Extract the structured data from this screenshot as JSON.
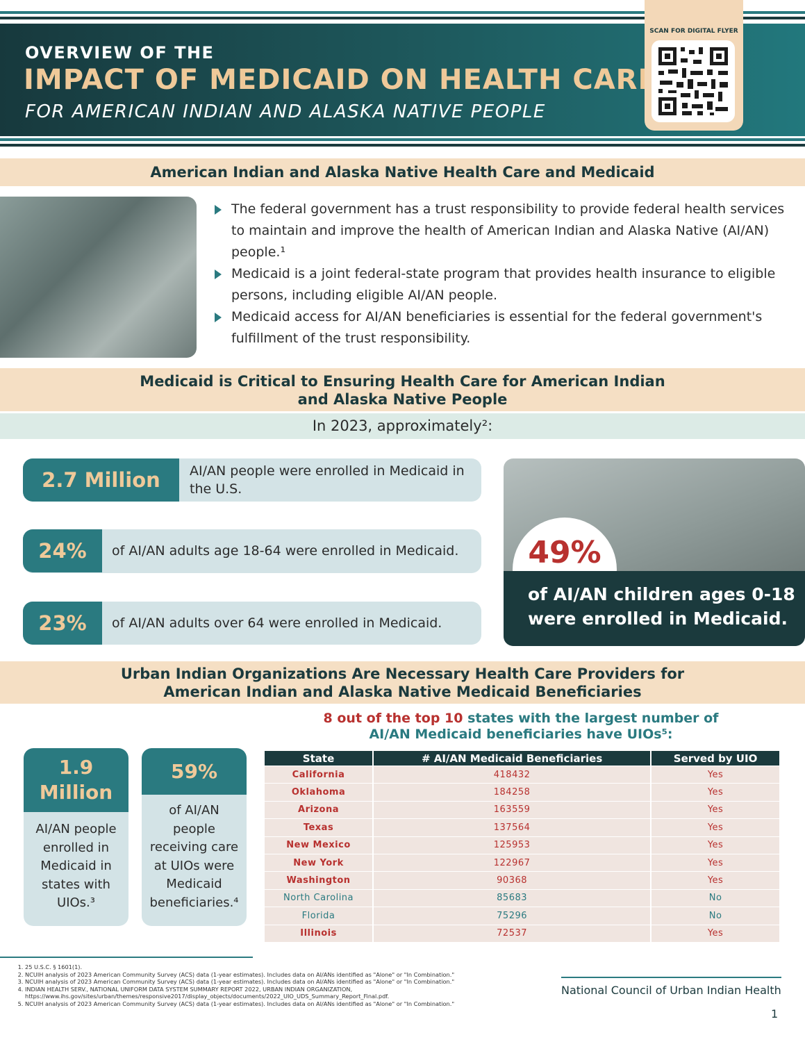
{
  "header": {
    "line1": "OVERVIEW OF THE",
    "title": "IMPACT OF MEDICAID ON HEALTH CARE",
    "subtitle": "FOR AMERICAN INDIAN AND ALASKA NATIVE PEOPLE",
    "qr_label": "SCAN FOR DIGITAL FLYER"
  },
  "section1": {
    "heading": "American Indian and Alaska Native Health Care and Medicaid",
    "bullets": [
      "The federal government has a trust responsibility to provide federal health services to maintain and improve the health of American Indian and Alaska Native (AI/AN) people.¹",
      "Medicaid is a joint federal-state program that provides health insurance to eligible persons, including eligible AI/AN people.",
      "Medicaid access for AI/AN beneficiaries is essential for the federal government's fulfillment of the trust responsibility."
    ]
  },
  "section2": {
    "heading_lines": [
      "Medicaid is Critical to Ensuring Health Care for American Indian",
      "and Alaska Native People"
    ],
    "intro": "In 2023, approximately²:",
    "stats": [
      {
        "value": "2.7 Million",
        "text": "AI/AN people were enrolled in Medicaid in the U.S."
      },
      {
        "value": "24%",
        "text": "of AI/AN adults age 18-64 were enrolled in Medicaid."
      },
      {
        "value": "23%",
        "text": "of AI/AN adults over 64 were enrolled in Medicaid."
      }
    ],
    "highlight": {
      "value": "49%",
      "text": "of AI/AN children ages 0-18 were enrolled in Medicaid."
    }
  },
  "section3": {
    "heading_lines": [
      "Urban Indian Organizations Are Necessary Health Care Providers for",
      "American Indian and Alaska Native Medicaid Beneficiaries"
    ],
    "cards": [
      {
        "value": "1.9 Million",
        "text": "AI/AN people enrolled in Medicaid in states with UIOs.³"
      },
      {
        "value": "59%",
        "text": "of AI/AN people receiving care at UIOs were Medicaid beneficiaries.⁴"
      }
    ],
    "table_title_highlight": "8 out of the top 10",
    "table_title_rest": "states with the largest number of AI/AN Medicaid beneficiaries have UIOs⁵:",
    "table": {
      "headers": [
        "State",
        "# AI/AN Medicaid Beneficiaries",
        "Served by UIO"
      ],
      "rows": [
        [
          "California",
          418432,
          "Yes"
        ],
        [
          "Oklahoma",
          184258,
          "Yes"
        ],
        [
          "Arizona",
          163559,
          "Yes"
        ],
        [
          "Texas",
          137564,
          "Yes"
        ],
        [
          "New Mexico",
          125953,
          "Yes"
        ],
        [
          "New York",
          122967,
          "Yes"
        ],
        [
          "Washington",
          90368,
          "Yes"
        ],
        [
          "North Carolina",
          85683,
          "No"
        ],
        [
          "Florida",
          75296,
          "No"
        ],
        [
          "Illinois",
          72537,
          "Yes"
        ]
      ]
    }
  },
  "footnotes": [
    "25 U.S.C. § 1601(1).",
    "NCUIH analysis of 2023 American Community Survey (ACS) data (1-year estimates). Includes data on AI/ANs identified as \"Alone\" or \"In Combination.\"",
    "NCUIH analysis of 2023 American Community Survey (ACS) data (1-year estimates). Includes data on AI/ANs identified as \"Alone\" or \"In Combination.\"",
    "INDIAN HEALTH SERV., NATIONAL UNIFORM DATA SYSTEM SUMMARY REPORT 2022, URBAN INDIAN ORGANIZATION, https://www.ihs.gov/sites/urban/themes/responsive2017/display_objects/documents/2022_UIO_UDS_Summary_Report_Final.pdf.",
    "NCUIH analysis of 2023 American Community Survey (ACS) data (1-year estimates). Includes data on AI/ANs identified as \"Alone\" or \"In Combination.\""
  ],
  "footer": {
    "organization": "National Council of Urban Indian Health",
    "page": "1"
  }
}
